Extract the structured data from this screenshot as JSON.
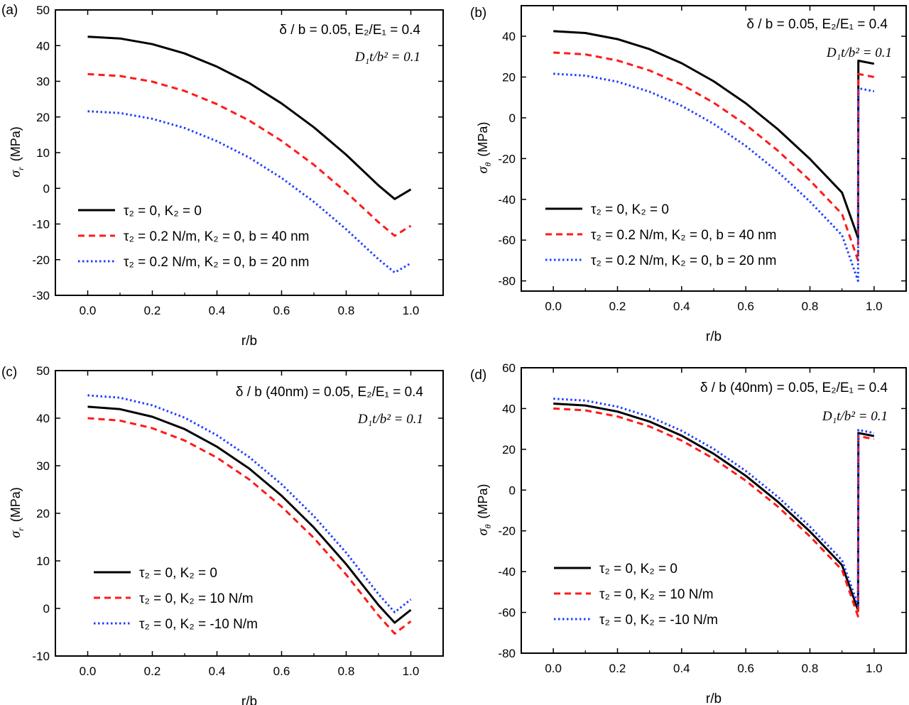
{
  "panels": [
    {
      "label": "(a)",
      "xlabel": "r/b",
      "ylabel_symbol": "σ",
      "ylabel_sub": "r",
      "ylabel_unit": "(MPa)",
      "annotations": {
        "params_line": "δ / b = 0.05, E₂/E₁ = 0.4",
        "d_line": "D₁t/b² = 0.1"
      },
      "legend": [
        {
          "text": "τ₂ = 0, K₂ = 0"
        },
        {
          "text": "τ₂ = 0.2 N/m, K₂ = 0, b = 40 nm"
        },
        {
          "text": "τ₂ = 0.2 N/m, K₂ = 0, b = 20 nm"
        }
      ]
    },
    {
      "label": "(b)",
      "xlabel": "r/b",
      "ylabel_symbol": "σ",
      "ylabel_sub": "θ",
      "ylabel_unit": "(MPa)",
      "annotations": {
        "params_line": "δ / b  = 0.05, E₂/E₁ = 0.4",
        "d_line": "D₁t/b² = 0.1"
      },
      "legend": [
        {
          "text": "τ₂ = 0, K₂ = 0"
        },
        {
          "text": "τ₂ = 0.2 N/m, K₂ = 0, b = 40 nm"
        },
        {
          "text": "τ₂ = 0.2 N/m, K₂ = 0, b = 20 nm"
        }
      ]
    },
    {
      "label": "(c)",
      "xlabel": "r/b",
      "ylabel_symbol": "σ",
      "ylabel_sub": "r",
      "ylabel_unit": "(MPa)",
      "annotations": {
        "params_line": "δ / b (40nm) = 0.05, E₂/E₁ = 0.4",
        "d_line": "D₁t/b² = 0.1"
      },
      "legend": [
        {
          "text": "τ₂ = 0, K₂ = 0"
        },
        {
          "text": "τ₂ = 0, K₂ = 10 N/m"
        },
        {
          "text": "τ₂ = 0, K₂ = -10 N/m"
        }
      ]
    },
    {
      "label": "(d)",
      "xlabel": "r/b",
      "ylabel_symbol": "σ",
      "ylabel_sub": "θ",
      "ylabel_unit": "(MPa)",
      "annotations": {
        "params_line": "δ / b (40nm) = 0.05, E₂/E₁ = 0.4",
        "d_line": "D₁t/b² = 0.1"
      },
      "legend": [
        {
          "text": "τ₂ = 0, K₂ = 0"
        },
        {
          "text": "τ₂ = 0, K₂ = 10 N/m"
        },
        {
          "text": "τ₂ = 0, K₂ = -10 N/m"
        }
      ]
    }
  ],
  "colors": {
    "black": "#000000",
    "red": "#ff1a1a",
    "blue": "#1f3dff"
  },
  "chart_data": [
    {
      "type": "line",
      "panel": "(a)",
      "xlabel": "r/b",
      "ylabel": "σr (MPa)",
      "xlim": [
        -0.1,
        1.1
      ],
      "ylim": [
        -30,
        50
      ],
      "xticks": [
        0.0,
        0.2,
        0.4,
        0.6,
        0.8,
        1.0
      ],
      "yticks": [
        -30,
        -20,
        -10,
        0,
        10,
        20,
        30,
        40,
        50
      ],
      "x": [
        0.0,
        0.1,
        0.2,
        0.3,
        0.4,
        0.5,
        0.6,
        0.7,
        0.8,
        0.9,
        0.95,
        1.0
      ],
      "series": [
        {
          "name": "τ₂ = 0, K₂ = 0",
          "style": "solid",
          "color": "#000000",
          "values": [
            42.5,
            42.0,
            40.4,
            37.8,
            34.1,
            29.5,
            23.8,
            17.1,
            9.4,
            0.8,
            -3.0,
            -0.3
          ]
        },
        {
          "name": "τ₂ = 0.2 N/m, K₂ = 0, b = 40 nm",
          "style": "dashed",
          "color": "#ff1a1a",
          "values": [
            32.0,
            31.5,
            29.9,
            27.3,
            23.6,
            19.0,
            13.3,
            6.6,
            -1.1,
            -9.5,
            -13.3,
            -10.5
          ]
        },
        {
          "name": "τ₂ = 0.2 N/m, K₂ = 0, b = 20 nm",
          "style": "dotted",
          "color": "#1f3dff",
          "values": [
            21.6,
            21.1,
            19.5,
            16.9,
            13.2,
            8.6,
            2.9,
            -3.8,
            -11.5,
            -19.9,
            -23.6,
            -21.0
          ]
        }
      ]
    },
    {
      "type": "line",
      "panel": "(b)",
      "xlabel": "r/b",
      "ylabel": "σθ (MPa)",
      "xlim": [
        -0.1,
        1.1
      ],
      "ylim": [
        -85,
        55
      ],
      "xticks": [
        0.0,
        0.2,
        0.4,
        0.6,
        0.8,
        1.0
      ],
      "yticks": [
        -80,
        -60,
        -40,
        -20,
        0,
        20,
        40
      ],
      "x": [
        0.0,
        0.1,
        0.2,
        0.3,
        0.4,
        0.5,
        0.6,
        0.7,
        0.8,
        0.9,
        0.95,
        0.951,
        1.0
      ],
      "series": [
        {
          "name": "τ₂ = 0, K₂ = 0",
          "style": "solid",
          "color": "#000000",
          "values": [
            42.5,
            41.6,
            38.6,
            33.7,
            26.8,
            17.9,
            7.1,
            -5.6,
            -20.2,
            -36.7,
            -58.9,
            28.0,
            26.5
          ]
        },
        {
          "name": "τ₂ = 0.2 N/m, K₂ = 0, b = 40 nm",
          "style": "dashed",
          "color": "#ff1a1a",
          "values": [
            32.0,
            31.1,
            28.1,
            23.2,
            16.3,
            7.4,
            -3.4,
            -16.1,
            -30.7,
            -47.2,
            -70.0,
            21.5,
            20.0
          ]
        },
        {
          "name": "τ₂ = 0.2 N/m, K₂ = 0, b = 20 nm",
          "style": "dotted",
          "color": "#1f3dff",
          "values": [
            21.6,
            20.7,
            17.7,
            12.8,
            5.9,
            -3.0,
            -13.8,
            -26.5,
            -41.1,
            -57.6,
            -80.0,
            14.5,
            13.0
          ]
        }
      ]
    },
    {
      "type": "line",
      "panel": "(c)",
      "xlabel": "r/b",
      "ylabel": "σr (MPa)",
      "xlim": [
        -0.1,
        1.1
      ],
      "ylim": [
        -10,
        50
      ],
      "xticks": [
        0.0,
        0.2,
        0.4,
        0.6,
        0.8,
        1.0
      ],
      "yticks": [
        -10,
        0,
        10,
        20,
        30,
        40,
        50
      ],
      "x": [
        0.0,
        0.1,
        0.2,
        0.3,
        0.4,
        0.5,
        0.6,
        0.7,
        0.8,
        0.9,
        0.95,
        1.0
      ],
      "series": [
        {
          "name": "τ₂ = 0, K₂ = 0",
          "style": "solid",
          "color": "#000000",
          "values": [
            42.4,
            41.9,
            40.3,
            37.7,
            34.0,
            29.4,
            23.7,
            17.0,
            9.3,
            0.7,
            -3.0,
            -0.3
          ]
        },
        {
          "name": "τ₂ = 0, K₂ = 10 N/m",
          "style": "dashed",
          "color": "#ff1a1a",
          "values": [
            40.0,
            39.5,
            37.9,
            35.3,
            31.7,
            27.1,
            21.4,
            14.8,
            7.1,
            -1.5,
            -5.3,
            -2.7
          ]
        },
        {
          "name": "τ₂ = 0, K₂ = -10 N/m",
          "style": "dotted",
          "color": "#1f3dff",
          "values": [
            44.8,
            44.3,
            42.7,
            40.1,
            36.4,
            31.8,
            26.1,
            19.4,
            11.7,
            3.0,
            -0.8,
            1.9
          ]
        }
      ]
    },
    {
      "type": "line",
      "panel": "(d)",
      "xlabel": "r/b",
      "ylabel": "σθ (MPa)",
      "xlim": [
        -0.1,
        1.1
      ],
      "ylim": [
        -80,
        60
      ],
      "xticks": [
        0.0,
        0.2,
        0.4,
        0.6,
        0.8,
        1.0
      ],
      "yticks": [
        -80,
        -60,
        -40,
        -20,
        0,
        20,
        40,
        60
      ],
      "x": [
        0.0,
        0.1,
        0.2,
        0.3,
        0.4,
        0.5,
        0.6,
        0.7,
        0.8,
        0.9,
        0.95,
        0.951,
        1.0
      ],
      "series": [
        {
          "name": "τ₂ = 0, K₂ = 0",
          "style": "solid",
          "color": "#000000",
          "values": [
            42.4,
            41.5,
            38.5,
            33.6,
            26.7,
            17.8,
            7.0,
            -5.7,
            -20.3,
            -36.8,
            -59.0,
            28.0,
            26.5
          ]
        },
        {
          "name": "τ₂ = 0, K₂ = 10 N/m",
          "style": "dashed",
          "color": "#ff1a1a",
          "values": [
            40.0,
            39.1,
            36.1,
            31.2,
            24.3,
            15.4,
            4.6,
            -8.1,
            -22.7,
            -39.2,
            -62.0,
            26.5,
            25.0
          ]
        },
        {
          "name": "τ₂ = 0, K₂ = -10 N/m",
          "style": "dotted",
          "color": "#1f3dff",
          "values": [
            44.8,
            43.9,
            40.9,
            36.0,
            29.1,
            20.2,
            9.4,
            -3.3,
            -17.9,
            -34.4,
            -56.5,
            29.5,
            28.0
          ]
        }
      ]
    }
  ]
}
